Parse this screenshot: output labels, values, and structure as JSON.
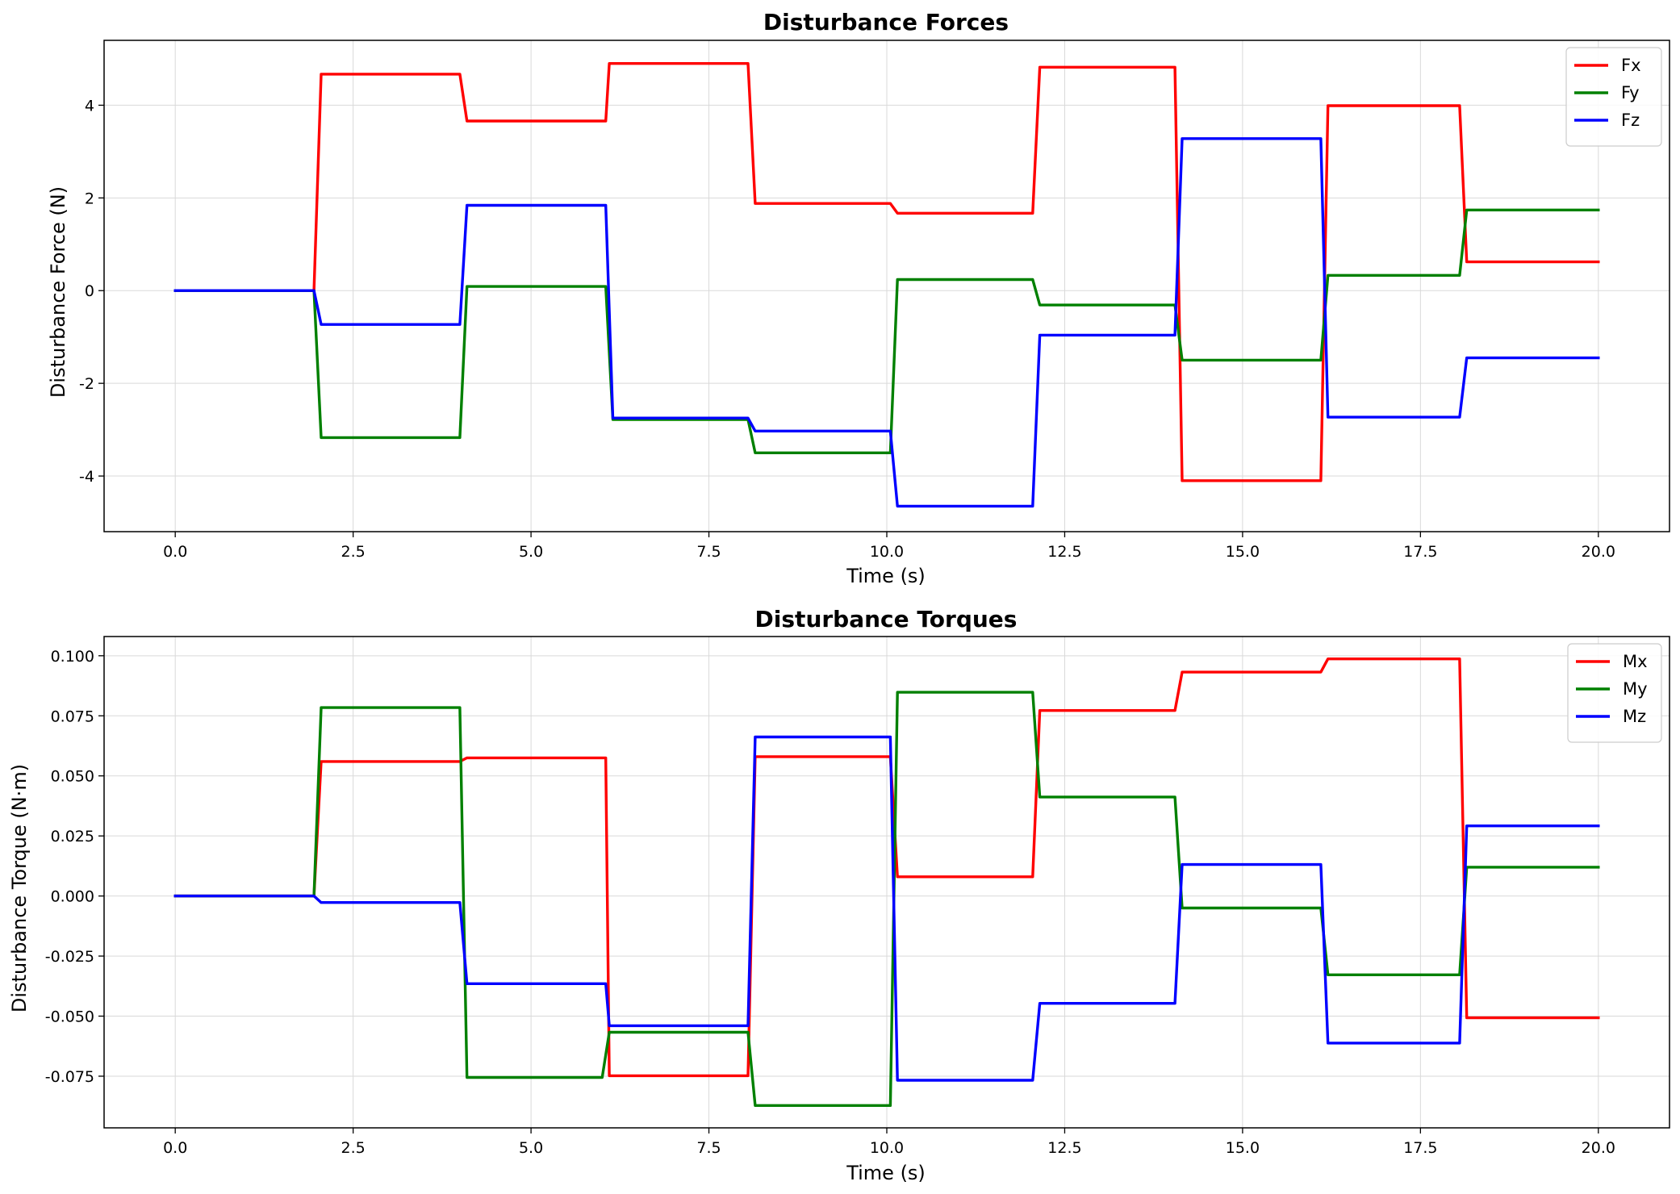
{
  "chart_data": [
    {
      "type": "line",
      "title": "Disturbance Forces",
      "xlabel": "Time (s)",
      "ylabel": "Disturbance Force (N)",
      "xlim": [
        -1.0,
        21.0
      ],
      "ylim": [
        -5.2,
        5.4
      ],
      "xticks": [
        0.0,
        2.5,
        5.0,
        7.5,
        10.0,
        12.5,
        15.0,
        17.5,
        20.0
      ],
      "xtick_labels": [
        "0.0",
        "2.5",
        "5.0",
        "7.5",
        "10.0",
        "12.5",
        "15.0",
        "17.5",
        "20.0"
      ],
      "yticks": [
        -4,
        -2,
        0,
        2,
        4
      ],
      "ytick_labels": [
        "-4",
        "-2",
        "0",
        "2",
        "4"
      ],
      "grid": true,
      "legend_position": "upper-right",
      "series": [
        {
          "name": "Fx",
          "color": "#ff0000",
          "x": [
            0,
            1.95,
            2.05,
            4.0,
            4.1,
            6.05,
            6.1,
            8.05,
            8.15,
            10.05,
            10.15,
            12.05,
            12.15,
            14.05,
            14.15,
            16.1,
            16.2,
            18.05,
            18.15,
            20.0
          ],
          "y": [
            0,
            0,
            4.67,
            4.67,
            3.66,
            3.66,
            4.9,
            4.9,
            1.88,
            1.88,
            1.67,
            1.67,
            4.82,
            4.82,
            -4.1,
            -4.1,
            3.99,
            3.99,
            0.62,
            0.62
          ]
        },
        {
          "name": "Fy",
          "color": "#008000",
          "x": [
            0,
            1.95,
            2.05,
            4.0,
            4.1,
            6.05,
            6.15,
            8.05,
            8.15,
            10.05,
            10.15,
            12.05,
            12.15,
            14.05,
            14.15,
            16.1,
            16.2,
            18.05,
            18.15,
            20.0
          ],
          "y": [
            0,
            0,
            -3.17,
            -3.17,
            0.09,
            0.09,
            -2.78,
            -2.78,
            -3.5,
            -3.5,
            0.24,
            0.24,
            -0.31,
            -0.31,
            -1.5,
            -1.5,
            0.33,
            0.33,
            1.74,
            1.74
          ]
        },
        {
          "name": "Fz",
          "color": "#0000ff",
          "x": [
            0,
            1.95,
            2.05,
            4.0,
            4.1,
            6.05,
            6.15,
            8.05,
            8.15,
            10.05,
            10.15,
            12.05,
            12.15,
            14.05,
            14.15,
            16.1,
            16.2,
            18.05,
            18.15,
            20.0
          ],
          "y": [
            0,
            0,
            -0.73,
            -0.73,
            1.84,
            1.84,
            -2.75,
            -2.75,
            -3.03,
            -3.03,
            -4.65,
            -4.65,
            -0.96,
            -0.96,
            3.28,
            3.28,
            -2.73,
            -2.73,
            -1.45,
            -1.45
          ]
        }
      ]
    },
    {
      "type": "line",
      "title": "Disturbance Torques",
      "xlabel": "Time (s)",
      "ylabel": "Disturbance Torque (N·m)",
      "xlim": [
        -1.0,
        21.0
      ],
      "ylim": [
        -0.0965,
        0.108
      ],
      "xticks": [
        0.0,
        2.5,
        5.0,
        7.5,
        10.0,
        12.5,
        15.0,
        17.5,
        20.0
      ],
      "xtick_labels": [
        "0.0",
        "2.5",
        "5.0",
        "7.5",
        "10.0",
        "12.5",
        "15.0",
        "17.5",
        "20.0"
      ],
      "yticks": [
        -0.075,
        -0.05,
        -0.025,
        0.0,
        0.025,
        0.05,
        0.075,
        0.1
      ],
      "ytick_labels": [
        "-0.075",
        "-0.050",
        "-0.025",
        "0.000",
        "0.025",
        "0.050",
        "0.075",
        "0.100"
      ],
      "grid": true,
      "legend_position": "upper-right",
      "series": [
        {
          "name": "Mx",
          "color": "#ff0000",
          "x": [
            0,
            1.95,
            2.05,
            4.0,
            4.1,
            6.05,
            6.1,
            8.05,
            8.15,
            10.05,
            10.15,
            12.05,
            12.15,
            14.05,
            14.15,
            16.1,
            16.2,
            18.05,
            18.15,
            20.0
          ],
          "y": [
            0,
            0,
            0.056,
            0.056,
            0.0575,
            0.0575,
            -0.0748,
            -0.0748,
            0.058,
            0.058,
            0.008,
            0.008,
            0.0772,
            0.0772,
            0.0932,
            0.0932,
            0.0987,
            0.0987,
            -0.0507,
            -0.0507
          ]
        },
        {
          "name": "My",
          "color": "#008000",
          "x": [
            0,
            1.95,
            2.05,
            4.0,
            4.1,
            6.0,
            6.1,
            8.05,
            8.15,
            10.05,
            10.15,
            12.05,
            12.15,
            14.05,
            14.15,
            16.1,
            16.2,
            18.05,
            18.15,
            20.0
          ],
          "y": [
            0,
            0,
            0.0784,
            0.0784,
            -0.0755,
            -0.0755,
            -0.0567,
            -0.0567,
            -0.0872,
            -0.0872,
            0.0848,
            0.0848,
            0.0412,
            0.0412,
            -0.005,
            -0.005,
            -0.0328,
            -0.0328,
            0.012,
            0.012
          ]
        },
        {
          "name": "Mz",
          "color": "#0000ff",
          "x": [
            0,
            1.95,
            2.05,
            4.0,
            4.1,
            6.05,
            6.1,
            8.05,
            8.15,
            10.05,
            10.15,
            12.05,
            12.15,
            14.05,
            14.15,
            16.1,
            16.2,
            18.05,
            18.15,
            20.0
          ],
          "y": [
            0,
            0,
            -0.0027,
            -0.0027,
            -0.0365,
            -0.0365,
            -0.054,
            -0.054,
            0.0662,
            0.0662,
            -0.0767,
            -0.0767,
            -0.0447,
            -0.0447,
            0.0131,
            0.0131,
            -0.0612,
            -0.0612,
            0.0292,
            0.0292
          ]
        }
      ]
    }
  ]
}
